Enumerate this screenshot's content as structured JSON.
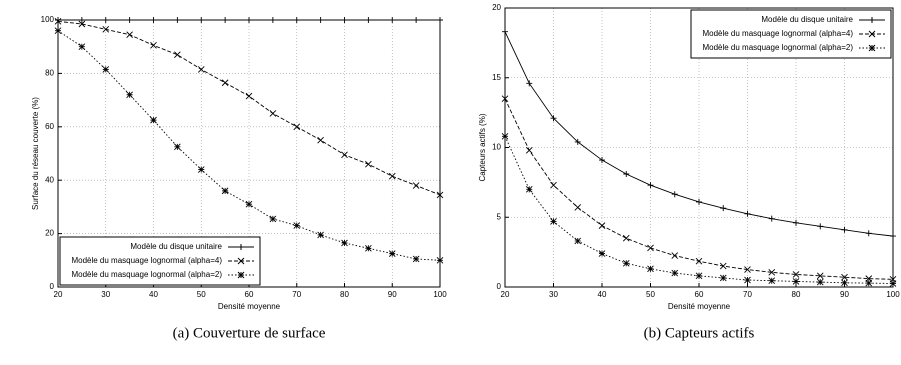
{
  "chart_data": [
    {
      "type": "line",
      "caption": "(a) Couverture de surface",
      "x_label": "Densité moyenne",
      "y_label": "Surface du réseau couverte (%)",
      "x": [
        20,
        25,
        30,
        35,
        40,
        45,
        50,
        55,
        60,
        65,
        70,
        75,
        80,
        85,
        90,
        95,
        100
      ],
      "series": [
        {
          "name": "Modèle du disque unitaire",
          "color": "#000000",
          "marker": "plus",
          "dash": "solid",
          "values": [
            100,
            100,
            100,
            100,
            100,
            100,
            100,
            100,
            100,
            100,
            100,
            100,
            100,
            100,
            100,
            100,
            100
          ]
        },
        {
          "name": "Modèle du masquage lognormal (alpha=4)",
          "color": "#000000",
          "marker": "cross",
          "dash": "dashed",
          "values": [
            99.5,
            98.5,
            96.5,
            94.5,
            90.5,
            87,
            81.5,
            76.5,
            71.5,
            65,
            60,
            55,
            49.5,
            46,
            41.5,
            38,
            34.5
          ]
        },
        {
          "name": "Modèle du masquage lognormal (alpha=2)",
          "color": "#000000",
          "marker": "star",
          "dash": "dotted",
          "values": [
            96,
            90,
            81.5,
            72,
            62.5,
            52.5,
            44,
            36,
            31,
            25.5,
            23,
            19.5,
            16.5,
            14.5,
            12.5,
            10.5,
            10
          ]
        }
      ],
      "xlim": [
        20,
        100
      ],
      "xticks": [
        20,
        30,
        40,
        50,
        60,
        70,
        80,
        90,
        100
      ],
      "ylim": [
        0,
        100
      ],
      "yticks": [
        0,
        20,
        40,
        60,
        80,
        100
      ],
      "legend": "lower left"
    },
    {
      "type": "line",
      "caption": "(b) Capteurs actifs",
      "x_label": "Densité moyenne",
      "y_label": "Capteurs actifs (%)",
      "x": [
        20,
        25,
        30,
        35,
        40,
        45,
        50,
        55,
        60,
        65,
        70,
        75,
        80,
        85,
        90,
        95,
        100
      ],
      "series": [
        {
          "name": "Modèle du disque unitaire",
          "color": "#000000",
          "marker": "plus",
          "dash": "solid",
          "values": [
            18.3,
            14.6,
            12.1,
            10.4,
            9.1,
            8.1,
            7.3,
            6.65,
            6.1,
            5.65,
            5.25,
            4.9,
            4.6,
            4.35,
            4.1,
            3.85,
            3.65
          ]
        },
        {
          "name": "Modèle du masquage lognormal (alpha=4)",
          "color": "#000000",
          "marker": "cross",
          "dash": "dashed",
          "values": [
            13.5,
            9.8,
            7.3,
            5.7,
            4.4,
            3.5,
            2.8,
            2.25,
            1.85,
            1.5,
            1.25,
            1.05,
            0.9,
            0.8,
            0.7,
            0.6,
            0.55
          ]
        },
        {
          "name": "Modèle du masquage lognormal (alpha=2)",
          "color": "#000000",
          "marker": "star",
          "dash": "dotted",
          "values": [
            10.8,
            7.0,
            4.7,
            3.3,
            2.4,
            1.7,
            1.3,
            1.0,
            0.8,
            0.65,
            0.5,
            0.45,
            0.4,
            0.35,
            0.3,
            0.28,
            0.25
          ]
        }
      ],
      "xlim": [
        20,
        100
      ],
      "xticks": [
        20,
        30,
        40,
        50,
        60,
        70,
        80,
        90,
        100
      ],
      "ylim": [
        0,
        20
      ],
      "yticks": [
        0,
        5,
        10,
        15,
        20
      ],
      "legend": "upper right"
    }
  ]
}
